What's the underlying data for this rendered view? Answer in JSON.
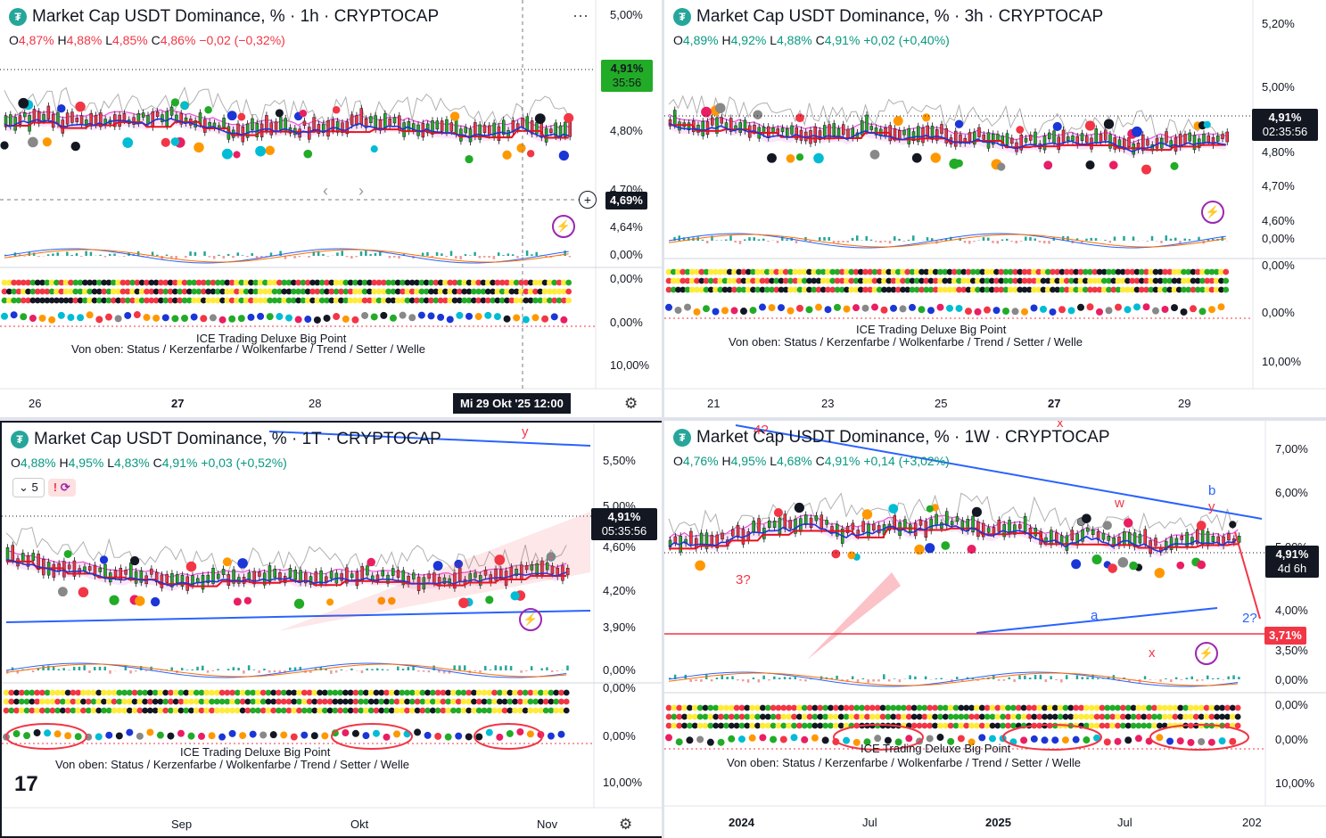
{
  "panels": [
    {
      "id": "p1h",
      "title": "Market Cap USDT Dominance, % · 1h · CRYPTOCAP",
      "ohlc": {
        "o_lbl": "O",
        "o": "4,87%",
        "h_lbl": "H",
        "h": "4,88%",
        "l_lbl": "L",
        "l": "4,85%",
        "c_lbl": "C",
        "c": "4,86%",
        "chg": "−0,02 (−0,32%)",
        "dir": "dn"
      },
      "price_ticks": [
        "5,00%",
        "4,80%",
        "4,70%",
        "4,64%"
      ],
      "osc_ticks": [
        "0,00%",
        "0,00%",
        "0,00%",
        "10,00%"
      ],
      "time_ticks": [
        "26",
        "27",
        "28"
      ],
      "tag_last": {
        "price": "4,91%",
        "countdown": "35:56"
      },
      "tag_cursor": "4,69%",
      "cursor_time": "Mi 29 Okt '25   12:00",
      "overlay_a": "ICE Trading Deluxe Big Point",
      "overlay_b": "Von oben: Status / Kerzenfarbe / Wolkenfarbe / Trend / Setter / Welle"
    },
    {
      "id": "p3h",
      "title": "Market Cap USDT Dominance, % · 3h · CRYPTOCAP",
      "ohlc": {
        "o_lbl": "O",
        "o": "4,89%",
        "h_lbl": "H",
        "h": "4,92%",
        "l_lbl": "L",
        "l": "4,88%",
        "c_lbl": "C",
        "c": "4,91%",
        "chg": "+0,02 (+0,40%)",
        "dir": "up"
      },
      "price_ticks": [
        "5,20%",
        "5,00%",
        "4,80%",
        "4,70%",
        "4,60%"
      ],
      "osc_ticks": [
        "0,00%",
        "0,00%",
        "0,00%",
        "10,00%"
      ],
      "time_ticks": [
        "21",
        "23",
        "25",
        "27",
        "29"
      ],
      "tag_last": {
        "price": "4,91%",
        "countdown": "02:35:56"
      },
      "overlay_a": "ICE Trading Deluxe Big Point",
      "overlay_b": "Von oben: Status / Kerzenfarbe / Wolkenfarbe / Trend / Setter / Welle"
    },
    {
      "id": "p1d",
      "title": "Market Cap USDT Dominance, % · 1T · CRYPTOCAP",
      "ohlc": {
        "o_lbl": "O",
        "o": "4,88%",
        "h_lbl": "H",
        "h": "4,95%",
        "l_lbl": "L",
        "l": "4,83%",
        "c_lbl": "C",
        "c": "4,91%",
        "chg": "+0,03 (+0,52%)",
        "dir": "up"
      },
      "indicator_count": "5",
      "price_ticks": [
        "5,50%",
        "5,00%",
        "4,60%",
        "4,20%",
        "3,90%"
      ],
      "osc_ticks": [
        "0,00%",
        "0,00%",
        "0,00%",
        "10,00%"
      ],
      "time_ticks": [
        "Sep",
        "Okt",
        "Nov"
      ],
      "tag_last": {
        "price": "4,91%",
        "countdown": "05:35:56"
      },
      "wave_labels": [
        "y"
      ],
      "overlay_a": "ICE Trading Deluxe Big Point",
      "overlay_b": "Von oben: Status / Kerzenfarbe / Wolkenfarbe / Trend / Setter / Welle"
    },
    {
      "id": "p1w",
      "title": "Market Cap USDT Dominance, % · 1W · CRYPTOCAP",
      "ohlc": {
        "o_lbl": "O",
        "o": "4,76%",
        "h_lbl": "H",
        "h": "4,95%",
        "l_lbl": "L",
        "l": "4,68%",
        "c_lbl": "C",
        "c": "4,91%",
        "chg": "+0,14 (+3,02%)",
        "dir": "up"
      },
      "price_ticks": [
        "7,00%",
        "6,00%",
        "5,00%",
        "4,00%",
        "3,50%"
      ],
      "osc_ticks": [
        "0,00%",
        "0,00%",
        "0,00%",
        "10,00%"
      ],
      "time_ticks": [
        "2024",
        "Jul",
        "2025",
        "Jul",
        "202"
      ],
      "tag_last": {
        "price": "4,91%",
        "countdown": "4d 6h"
      },
      "tag_level": "3,71%",
      "wave_labels": [
        "4?",
        "3?",
        "x",
        "b",
        "y",
        "w",
        "a",
        "x",
        "2?"
      ],
      "overlay_a": "ICE Trading Deluxe Big Point",
      "overlay_b": "Von oben: Status / Kerzenfarbe / Wolkenfarbe / Trend / Setter / Welle"
    }
  ],
  "icons": {
    "logo": "tether-logo-icon",
    "menu": "more-dots-icon",
    "gear": "settings-gear-icon",
    "plus": "crosshair-plus-icon",
    "bolt": "lightning-icon",
    "sync": "sync-icon",
    "tv": "tradingview-logo-icon"
  },
  "colors": {
    "up": "#089981",
    "down": "#f23645",
    "candle_up": "#22ab27",
    "candle_dn": "#f23645",
    "kijun": "#e5121c",
    "tenkan": "#1b36d6",
    "cloud": "#ec4fd8",
    "accent_blue": "#2962ff",
    "grey": "#888888"
  }
}
